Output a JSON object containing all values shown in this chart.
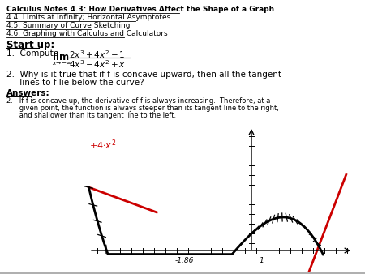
{
  "title_line1": "Calculus Notes 4.3: How Derivatives Affect the Shape of a Graph",
  "title_line2": "4.4: Limits at infinity; Horizontal Asymptotes.",
  "title_line3": "4.5: Summary of Curve Sketching",
  "title_line4": "4.6: Graphing with Calculus and Calculators",
  "startup_label": "Start up:",
  "item2_label": "2.  Why is it true that if f is concave upward, then all the tangent",
  "item2_label2": "     lines to f lie below the curve?",
  "answers_label": "Answers:",
  "answer2_line1": "2.   If f is concave up, the derivative of f is always increasing.  Therefore, at a",
  "answer2_line2": "      given point, the function is always steeper than its tangent line to the right,",
  "answer2_line3": "      and shallower than its tangent line to the left.",
  "annotation": "+4·x²",
  "x_label": "-1.86",
  "x_label2": "1",
  "bg_color": "#ffffff",
  "text_color": "#000000",
  "red_color": "#cc0000",
  "gray_color": "#b0b0b0"
}
